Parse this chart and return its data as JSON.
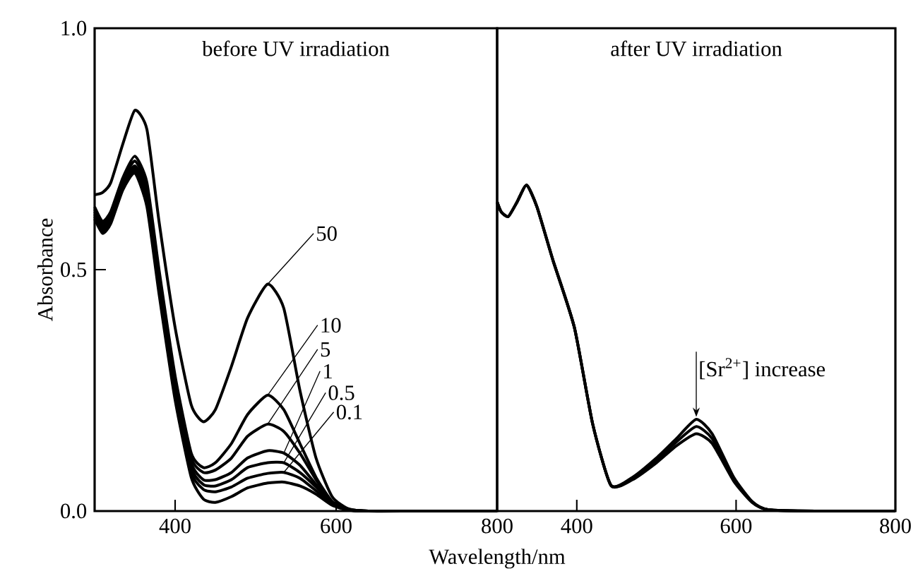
{
  "chart_data": [
    {
      "type": "line",
      "title": "before UV irradiation",
      "xlabel": "Wavelength/nm",
      "ylabel": "Absorbance",
      "x": [
        300,
        310,
        320,
        335,
        350,
        365,
        380,
        400,
        420,
        435,
        450,
        470,
        490,
        515,
        535,
        555,
        575,
        595,
        615,
        640,
        700,
        800
      ],
      "series": [
        {
          "color": "#000000",
          "values": [
            0.655,
            0.66,
            0.68,
            0.76,
            0.83,
            0.79,
            0.6,
            0.38,
            0.22,
            0.185,
            0.21,
            0.3,
            0.4,
            0.47,
            0.42,
            0.25,
            0.11,
            0.03,
            0.005,
            0,
            0,
            0
          ]
        },
        {
          "color": "#000000",
          "values": [
            0.63,
            0.6,
            0.62,
            0.69,
            0.735,
            0.68,
            0.5,
            0.28,
            0.12,
            0.09,
            0.1,
            0.14,
            0.2,
            0.24,
            0.21,
            0.14,
            0.07,
            0.02,
            0.004,
            0,
            0,
            0
          ]
        },
        {
          "color": "#000000",
          "values": [
            0.625,
            0.595,
            0.615,
            0.685,
            0.725,
            0.67,
            0.49,
            0.27,
            0.11,
            0.08,
            0.085,
            0.11,
            0.155,
            0.18,
            0.165,
            0.12,
            0.065,
            0.02,
            0.003,
            0,
            0,
            0
          ]
        },
        {
          "color": "#000000",
          "values": [
            0.62,
            0.59,
            0.61,
            0.68,
            0.715,
            0.66,
            0.48,
            0.26,
            0.1,
            0.065,
            0.065,
            0.08,
            0.11,
            0.125,
            0.12,
            0.095,
            0.055,
            0.018,
            0.003,
            0,
            0,
            0
          ]
        },
        {
          "color": "#000000",
          "values": [
            0.615,
            0.585,
            0.605,
            0.675,
            0.71,
            0.65,
            0.47,
            0.25,
            0.09,
            0.055,
            0.052,
            0.065,
            0.09,
            0.1,
            0.1,
            0.08,
            0.05,
            0.016,
            0.003,
            0,
            0,
            0
          ]
        },
        {
          "color": "#000000",
          "values": [
            0.61,
            0.58,
            0.6,
            0.67,
            0.705,
            0.64,
            0.46,
            0.24,
            0.08,
            0.045,
            0.04,
            0.05,
            0.068,
            0.078,
            0.08,
            0.068,
            0.042,
            0.014,
            0.002,
            0,
            0,
            0
          ]
        },
        {
          "color": "#000000",
          "values": [
            0.605,
            0.575,
            0.595,
            0.665,
            0.7,
            0.63,
            0.45,
            0.23,
            0.07,
            0.025,
            0.018,
            0.03,
            0.048,
            0.058,
            0.06,
            0.052,
            0.035,
            0.012,
            0.002,
            0,
            0,
            0
          ]
        }
      ],
      "annotations": [
        {
          "text": "50",
          "x": 515,
          "y": 0.47
        },
        {
          "text": "10",
          "x": 515,
          "y": 0.24
        },
        {
          "text": "5",
          "x": 515,
          "y": 0.18
        },
        {
          "text": "1",
          "x": 535,
          "y": 0.12
        },
        {
          "text": "0.5",
          "x": 535,
          "y": 0.1
        },
        {
          "text": "0.1",
          "x": 535,
          "y": 0.08
        }
      ],
      "xlim": [
        300,
        800
      ],
      "ylim": [
        0,
        1
      ],
      "xticks": [
        400,
        600,
        800
      ],
      "yticks": [
        {
          "value": 0,
          "label": "0.0"
        },
        {
          "value": 0.5,
          "label": "0.5"
        },
        {
          "value": 1,
          "label": "1.0"
        }
      ]
    },
    {
      "type": "line",
      "title": "after UV irradiation",
      "x": [
        300,
        305,
        314,
        325,
        337,
        350,
        370,
        397,
        420,
        443,
        470,
        500,
        525,
        550,
        570,
        597,
        620,
        640,
        700,
        800
      ],
      "series": [
        {
          "color": "#000000",
          "values": [
            0.64,
            0.62,
            0.61,
            0.64,
            0.675,
            0.63,
            0.52,
            0.38,
            0.18,
            0.053,
            0.07,
            0.11,
            0.15,
            0.19,
            0.16,
            0.07,
            0.02,
            0.003,
            0,
            0
          ]
        },
        {
          "color": "#000000",
          "values": [
            0.64,
            0.62,
            0.61,
            0.64,
            0.675,
            0.63,
            0.52,
            0.38,
            0.18,
            0.053,
            0.068,
            0.105,
            0.143,
            0.175,
            0.15,
            0.066,
            0.019,
            0.003,
            0,
            0
          ]
        },
        {
          "color": "#000000",
          "values": [
            0.64,
            0.62,
            0.61,
            0.64,
            0.675,
            0.63,
            0.52,
            0.38,
            0.18,
            0.053,
            0.065,
            0.1,
            0.135,
            0.16,
            0.14,
            0.062,
            0.018,
            0.003,
            0,
            0
          ]
        }
      ],
      "annotations": [
        {
          "text": "[Sr$^{2+}$] increase",
          "x": 550,
          "y": 0.19
        }
      ],
      "xlim": [
        300,
        800
      ],
      "ylim": [
        0,
        1
      ],
      "xticks": [
        400,
        600,
        800
      ],
      "tick_labels": "x"
    }
  ]
}
